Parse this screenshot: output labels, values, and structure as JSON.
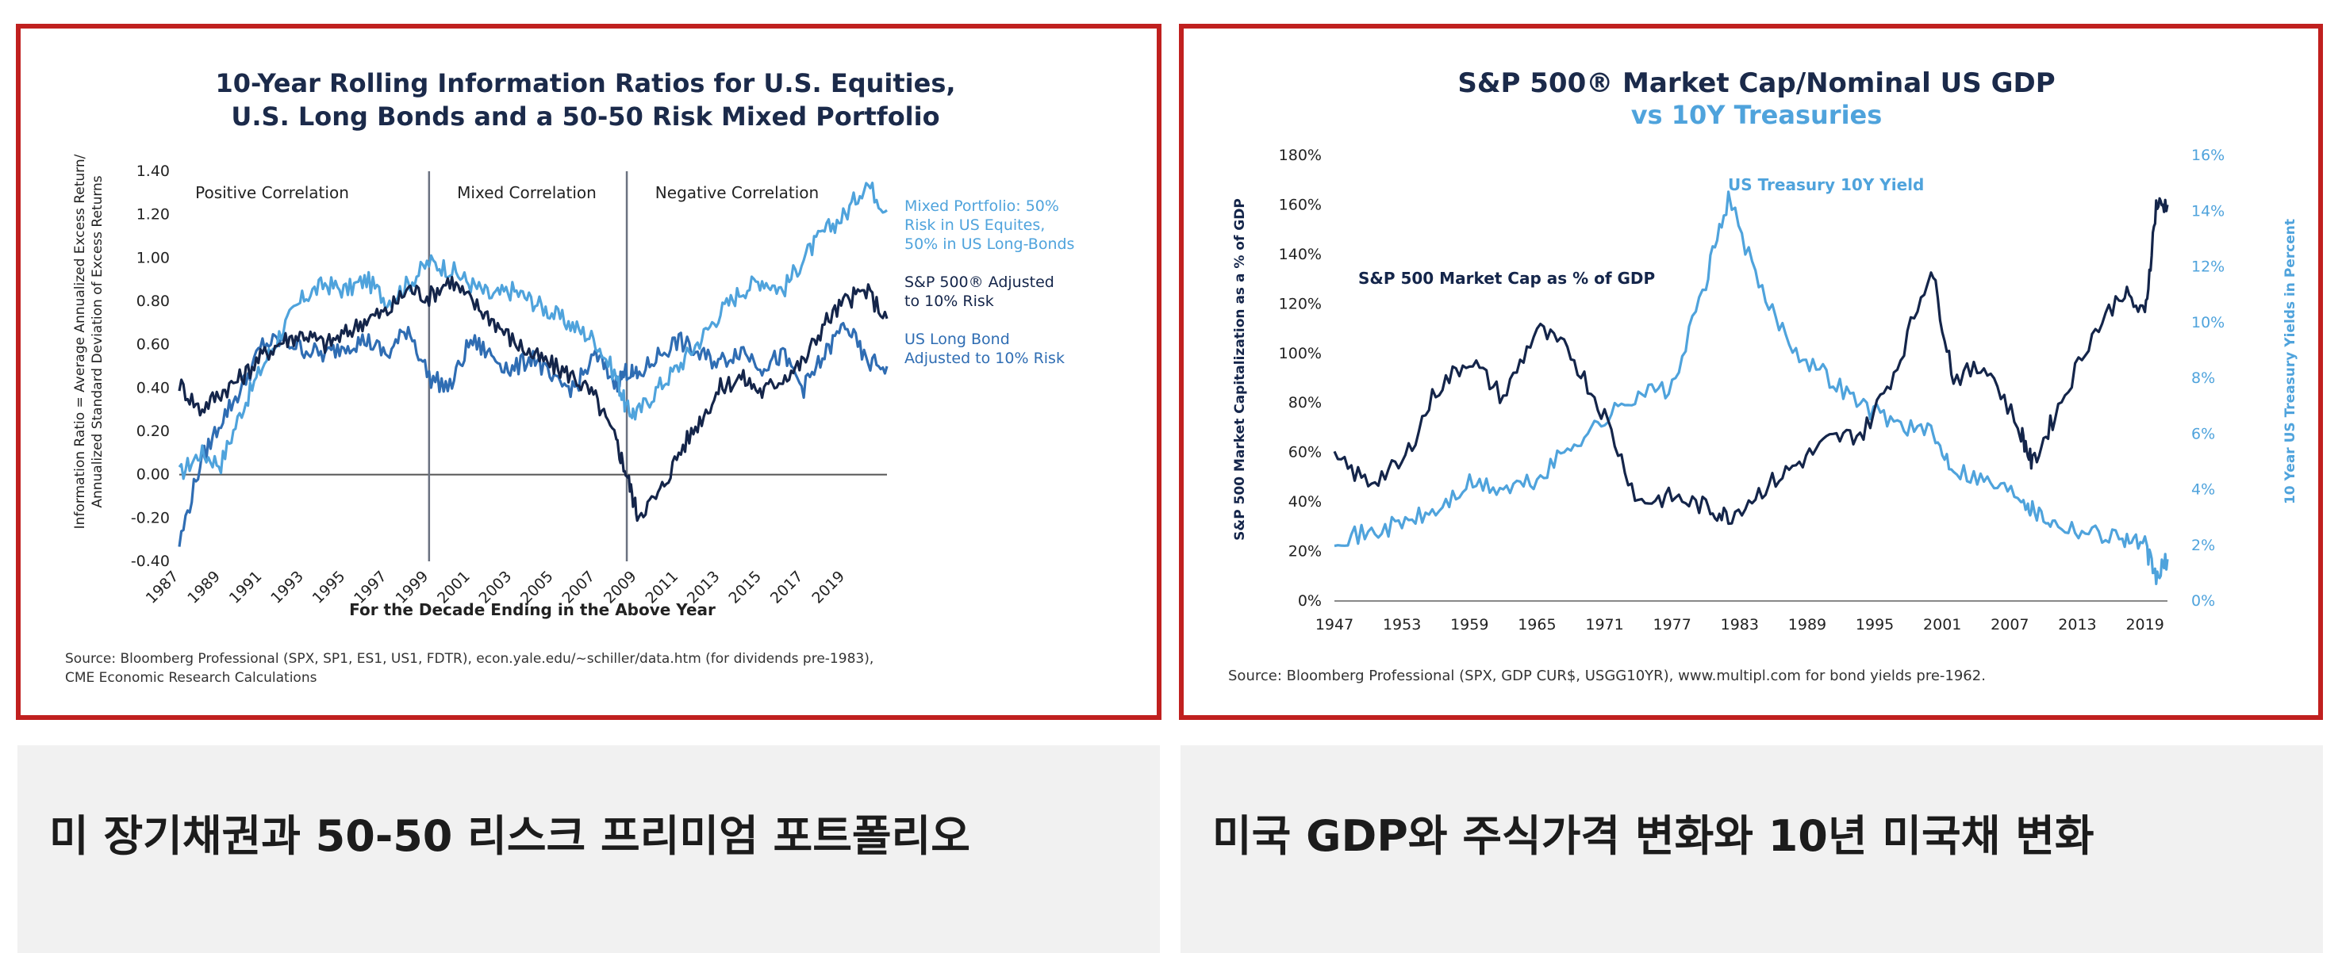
{
  "charts": {
    "left": {
      "title_line1": "10-Year Rolling Information Ratios for U.S. Equities,",
      "title_line2": "U.S. Long Bonds and a 50-50 Risk Mixed Portfolio",
      "ylabel_line1": "Information Ratio = Average Annualized Excess Return/",
      "ylabel_line2": "Annualized Standard Deviation of Excess Returns",
      "xlabel": "For the Decade Ending in the Above Year",
      "regions": [
        "Positive Correlation",
        "Mixed Correlation",
        "Negative Correlation"
      ],
      "legend": [
        {
          "line1": "Mixed Portfolio: 50%",
          "line2": "Risk in US Equites,",
          "line3": "50% in US Long-Bonds"
        },
        {
          "line1": "S&P 500® Adjusted",
          "line2": "to 10% Risk",
          "line3": ""
        },
        {
          "line1": "US Long Bond",
          "line2": "Adjusted to 10% Risk",
          "line3": ""
        }
      ],
      "source_line1": "Source: Bloomberg Professional (SPX, SP1, ES1, US1, FDTR), econ.yale.edu/~schiller/data.htm (for dividends pre-1983),",
      "source_line2": "CME Economic Research Calculations"
    },
    "right": {
      "title_line1": "S&P 500® Market Cap/Nominal US GDP",
      "title_line2": "vs 10Y Treasuries",
      "ylabel_left": "S&P 500 Market Capitalization as a % of GDP",
      "ylabel_right": "10 Year US Treasury Yields in Percent",
      "label_treasury": "US Treasury 10Y Yield",
      "label_sp500": "S&P 500 Market Cap as % of GDP",
      "source": "Source: Bloomberg Professional (SPX, GDP CUR$, USGG10YR), www.multipl.com for bond yields pre-1962."
    }
  },
  "captions": {
    "left": "미 장기채권과 50-50 리스크 프리미엄 포트폴리오",
    "right": "미국 GDP와 주식가격 변화와 10년 미국채 변화"
  },
  "colors": {
    "frame": "#c0201f",
    "title": "#1b2a4a",
    "light_blue": "#4fa3dc",
    "navy": "#14254a",
    "mid_blue": "#2f6db3"
  },
  "chart_data": [
    {
      "type": "line",
      "title": "10-Year Rolling Information Ratios for U.S. Equities, U.S. Long Bonds and a 50-50 Risk Mixed Portfolio",
      "xlabel": "For the Decade Ending in the Above Year",
      "ylabel": "Information Ratio = Average Annualized Excess Return/Annualized Standard Deviation of Excess Returns",
      "xlim": [
        1987,
        2021
      ],
      "ylim": [
        -0.4,
        1.4
      ],
      "x_ticks": [
        1987,
        1989,
        1991,
        1993,
        1995,
        1997,
        1999,
        2001,
        2003,
        2005,
        2007,
        2009,
        2011,
        2013,
        2015,
        2017,
        2019
      ],
      "y_ticks": [
        -0.4,
        -0.2,
        0.0,
        0.2,
        0.4,
        0.6,
        0.8,
        1.0,
        1.2,
        1.4
      ],
      "y_tick_labels": [
        "-0.40",
        "-0.20",
        "0.00",
        "0.20",
        "0.40",
        "0.60",
        "0.80",
        "1.00",
        "1.20",
        "1.40"
      ],
      "dividers": [
        1999,
        2008.5
      ],
      "x": [
        1987,
        1988,
        1989,
        1990,
        1991,
        1992,
        1993,
        1994,
        1995,
        1996,
        1997,
        1998,
        1999,
        2000,
        2001,
        2002,
        2003,
        2004,
        2005,
        2006,
        2007,
        2008,
        2008.5,
        2009,
        2010,
        2011,
        2012,
        2013,
        2014,
        2015,
        2016,
        2017,
        2018,
        2019,
        2020,
        2021
      ],
      "series": [
        {
          "name": "Mixed Portfolio: 50% Risk in US Equites, 50% in US Long-Bonds",
          "color": "#4fa3dc",
          "values": [
            0.0,
            0.1,
            0.05,
            0.3,
            0.5,
            0.68,
            0.82,
            0.88,
            0.85,
            0.9,
            0.8,
            0.88,
            0.98,
            0.95,
            0.88,
            0.82,
            0.85,
            0.8,
            0.74,
            0.68,
            0.62,
            0.45,
            0.3,
            0.28,
            0.4,
            0.5,
            0.62,
            0.75,
            0.85,
            0.9,
            0.85,
            1.0,
            1.12,
            1.2,
            1.35,
            1.22
          ]
        },
        {
          "name": "S&P 500® Adjusted to 10% Risk",
          "color": "#14254a",
          "values": [
            0.42,
            0.3,
            0.38,
            0.45,
            0.55,
            0.62,
            0.65,
            0.6,
            0.65,
            0.72,
            0.75,
            0.86,
            0.82,
            0.9,
            0.8,
            0.72,
            0.62,
            0.55,
            0.5,
            0.45,
            0.35,
            0.15,
            0.0,
            -0.18,
            -0.1,
            0.1,
            0.25,
            0.4,
            0.45,
            0.38,
            0.45,
            0.52,
            0.7,
            0.8,
            0.85,
            0.72
          ]
        },
        {
          "name": "US Long Bond Adjusted to 10% Risk",
          "color": "#2f6db3",
          "values": [
            -0.32,
            0.05,
            0.25,
            0.4,
            0.6,
            0.62,
            0.58,
            0.55,
            0.6,
            0.62,
            0.55,
            0.68,
            0.45,
            0.4,
            0.62,
            0.55,
            0.48,
            0.55,
            0.42,
            0.4,
            0.55,
            0.42,
            0.48,
            0.45,
            0.55,
            0.62,
            0.55,
            0.52,
            0.58,
            0.5,
            0.55,
            0.4,
            0.55,
            0.7,
            0.52,
            0.5
          ]
        }
      ]
    },
    {
      "type": "line",
      "title": "S&P 500® Market Cap/Nominal US GDP vs 10Y Treasuries",
      "xlabel": "",
      "ylabel": "S&P 500 Market Capitalization as a % of GDP",
      "y2label": "10 Year US Treasury Yields in Percent",
      "xlim": [
        1947,
        2021
      ],
      "ylim": [
        0,
        180
      ],
      "y2lim": [
        0,
        16
      ],
      "x_ticks": [
        1947,
        1953,
        1959,
        1965,
        1971,
        1977,
        1983,
        1989,
        1995,
        2001,
        2007,
        2013,
        2019
      ],
      "y_ticks": [
        0,
        20,
        40,
        60,
        80,
        100,
        120,
        140,
        160,
        180
      ],
      "y_tick_labels": [
        "0%",
        "20%",
        "40%",
        "60%",
        "80%",
        "100%",
        "120%",
        "140%",
        "160%",
        "180%"
      ],
      "y2_ticks": [
        0,
        2,
        4,
        6,
        8,
        10,
        12,
        14,
        16
      ],
      "y2_tick_labels": [
        "0%",
        "2%",
        "4%",
        "6%",
        "8%",
        "10%",
        "12%",
        "14%",
        "16%"
      ],
      "x": [
        1947,
        1950,
        1953,
        1956,
        1959,
        1962,
        1965,
        1968,
        1971,
        1974,
        1977,
        1980,
        1982,
        1985,
        1988,
        1991,
        1994,
        1997,
        2000,
        2002,
        2005,
        2008,
        2009,
        2011,
        2014,
        2017,
        2019,
        2020,
        2021
      ],
      "series": [
        {
          "name": "S&P 500 Market Cap as % of GDP",
          "color": "#14254a",
          "axis": "left",
          "values": [
            57,
            48,
            55,
            85,
            98,
            82,
            110,
            100,
            75,
            40,
            42,
            38,
            34,
            45,
            55,
            65,
            68,
            95,
            135,
            90,
            95,
            68,
            55,
            75,
            105,
            125,
            115,
            160,
            160
          ]
        },
        {
          "name": "US Treasury 10Y Yield",
          "color": "#4fa3dc",
          "axis": "right",
          "values": [
            2.3,
            2.4,
            2.8,
            3.2,
            4.2,
            4.0,
            4.3,
            5.6,
            6.5,
            7.5,
            7.6,
            11.5,
            14.5,
            11.0,
            9.0,
            8.0,
            7.0,
            6.4,
            6.0,
            4.8,
            4.3,
            3.8,
            3.3,
            2.8,
            2.5,
            2.3,
            2.0,
            0.8,
            1.5
          ]
        }
      ]
    }
  ]
}
